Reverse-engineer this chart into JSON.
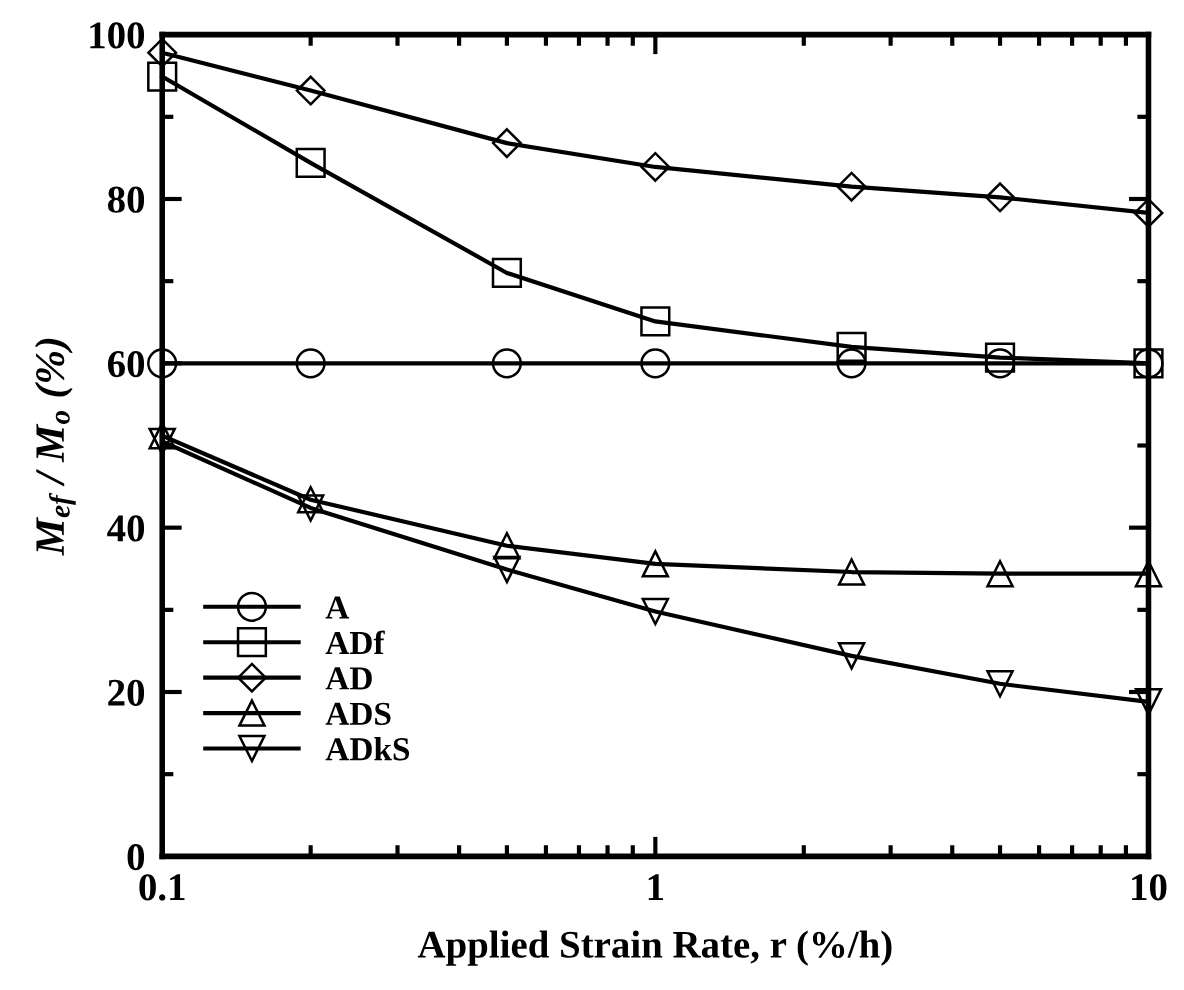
{
  "chart_data": {
    "type": "line",
    "xlabel": "Applied Strain Rate, r (%/h)",
    "ylabel": "M$_{ef}$ / M$_{o}$ (%)",
    "x": [
      0.1,
      0.2,
      0.5,
      1,
      2.5,
      5,
      10
    ],
    "series": [
      {
        "name": "A",
        "color": "#000000",
        "marker": "circle",
        "values": [
          60,
          60,
          60,
          60,
          60,
          60,
          60
        ]
      },
      {
        "name": "ADf",
        "color": "#000000",
        "marker": "square",
        "values": [
          94.9,
          84.4,
          71,
          65.1,
          62,
          60.7,
          60
        ]
      },
      {
        "name": "AD",
        "color": "#000000",
        "marker": "diamond",
        "values": [
          97.8,
          93.2,
          86.8,
          83.9,
          81.5,
          80.2,
          78.3
        ]
      },
      {
        "name": "ADS",
        "color": "#000000",
        "marker": "triangle",
        "values": [
          51.2,
          43.4,
          37.8,
          35.6,
          34.6,
          34.4,
          34.4
        ]
      },
      {
        "name": "ADkS",
        "color": "#000000",
        "marker": "triangle_down",
        "values": [
          50.5,
          42.4,
          34.9,
          29.8,
          24.4,
          21,
          18.8
        ]
      }
    ],
    "log": "x",
    "xlim": [
      0.1,
      10
    ],
    "xticks": [
      {
        "value": 0.1,
        "label": "0.1"
      },
      {
        "value": 0.2,
        "label": null
      },
      {
        "value": 0.3,
        "label": null
      },
      {
        "value": 0.4,
        "label": null
      },
      {
        "value": 0.5,
        "label": null
      },
      {
        "value": 0.6,
        "label": null
      },
      {
        "value": 0.7,
        "label": null
      },
      {
        "value": 0.8,
        "label": null
      },
      {
        "value": 0.9,
        "label": null
      },
      1,
      {
        "value": 2,
        "label": null
      },
      {
        "value": 3,
        "label": null
      },
      {
        "value": 4,
        "label": null
      },
      {
        "value": 5,
        "label": null
      },
      {
        "value": 6,
        "label": null
      },
      {
        "value": 7,
        "label": null
      },
      {
        "value": 8,
        "label": null
      },
      {
        "value": 9,
        "label": null
      },
      10
    ],
    "ylim": [
      0,
      100
    ],
    "yticks": [
      0,
      {
        "value": 10,
        "label": null
      },
      20,
      {
        "value": 30,
        "label": null
      },
      40,
      {
        "value": 50,
        "label": null
      },
      60,
      {
        "value": 70,
        "label": null
      },
      80,
      {
        "value": 90,
        "label": null
      },
      100
    ],
    "grid": false,
    "legend": "bottom left",
    "line_style": "solid"
  }
}
